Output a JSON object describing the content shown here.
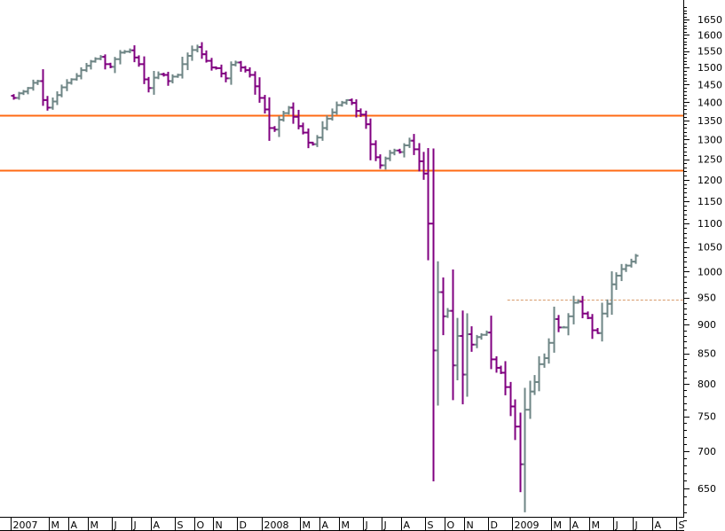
{
  "colors": {
    "background": "#ffffff",
    "up_bar": "#6e8585",
    "down_bar": "#800080",
    "resistance_line": "#ff6a13",
    "reference_line": "#d89a6a",
    "axis": "#000000"
  },
  "chart_data": {
    "type": "ohlc",
    "scale": "log",
    "ylim": [
      600,
      1700
    ],
    "y_ticks": [
      650,
      700,
      750,
      800,
      850,
      900,
      950,
      1000,
      1050,
      1100,
      1150,
      1200,
      1250,
      1300,
      1350,
      1400,
      1450,
      1500,
      1550,
      1600,
      1650
    ],
    "x_range": [
      "2007-01-01",
      "2009-09-28"
    ],
    "x_ticks": [
      {
        "date": "2007-01-01",
        "label": "2007"
      },
      {
        "date": "2007-02-26",
        "label": "M"
      },
      {
        "date": "2007-03-26",
        "label": "A"
      },
      {
        "date": "2007-04-23",
        "label": "M"
      },
      {
        "date": "2007-05-28",
        "label": "J"
      },
      {
        "date": "2007-06-25",
        "label": "J"
      },
      {
        "date": "2007-07-23",
        "label": "A"
      },
      {
        "date": "2007-08-27",
        "label": "S"
      },
      {
        "date": "2007-09-24",
        "label": "O"
      },
      {
        "date": "2007-10-22",
        "label": "N"
      },
      {
        "date": "2007-11-26",
        "label": "D"
      },
      {
        "date": "2007-12-31",
        "label": "2008"
      },
      {
        "date": "2008-02-25",
        "label": "M"
      },
      {
        "date": "2008-03-24",
        "label": "A"
      },
      {
        "date": "2008-04-21",
        "label": "M"
      },
      {
        "date": "2008-05-26",
        "label": "J"
      },
      {
        "date": "2008-06-23",
        "label": "J"
      },
      {
        "date": "2008-07-21",
        "label": "A"
      },
      {
        "date": "2008-08-25",
        "label": "S"
      },
      {
        "date": "2008-09-22",
        "label": "O"
      },
      {
        "date": "2008-10-20",
        "label": "N"
      },
      {
        "date": "2008-11-24",
        "label": "D"
      },
      {
        "date": "2008-12-29",
        "label": "2009"
      },
      {
        "date": "2009-02-23",
        "label": "M"
      },
      {
        "date": "2009-03-23",
        "label": "A"
      },
      {
        "date": "2009-04-20",
        "label": "M"
      },
      {
        "date": "2009-05-25",
        "label": "J"
      },
      {
        "date": "2009-06-22",
        "label": "J"
      },
      {
        "date": "2009-07-20",
        "label": "A"
      },
      {
        "date": "2009-08-24",
        "label": "S"
      }
    ],
    "horizontal_lines": [
      {
        "value": 1363,
        "style": "solid"
      },
      {
        "value": 1222,
        "style": "solid"
      },
      {
        "value": 945,
        "style": "dashed",
        "start": "2008-12-22"
      }
    ],
    "closes": [
      1412,
      1425,
      1430,
      1440,
      1455,
      1460,
      1406,
      1385,
      1402,
      1420,
      1442,
      1455,
      1465,
      1475,
      1492,
      1505,
      1518,
      1526,
      1532,
      1510,
      1502,
      1525,
      1545,
      1548,
      1552,
      1530,
      1510,
      1465,
      1440,
      1470,
      1480,
      1478,
      1460,
      1473,
      1478,
      1510,
      1535,
      1553,
      1562,
      1540,
      1520,
      1500,
      1498,
      1482,
      1468,
      1508,
      1515,
      1500,
      1492,
      1478,
      1445,
      1412,
      1380,
      1330,
      1326,
      1352,
      1370,
      1385,
      1360,
      1335,
      1318,
      1292,
      1288,
      1305,
      1330,
      1355,
      1372,
      1392,
      1399,
      1406,
      1398,
      1376,
      1366,
      1340,
      1288,
      1255,
      1235,
      1252,
      1266,
      1272,
      1268,
      1285,
      1297,
      1275,
      1245,
      1215,
      1100,
      855,
      960,
      915,
      925,
      830,
      880,
      815,
      883,
      865,
      878,
      882,
      886,
      840,
      826,
      818,
      795,
      765,
      735,
      682,
      760,
      788,
      803,
      832,
      842,
      868,
      910,
      895,
      895,
      915,
      940,
      942,
      920,
      912,
      890,
      885,
      920,
      938,
      975,
      992,
      1005,
      1012,
      1020,
      1032
    ],
    "series": [
      {
        "name": "",
        "values": [
          1412,
          1425,
          1430,
          1440,
          1455,
          1460,
          1406,
          1385,
          1402,
          1420,
          1442,
          1455,
          1465,
          1475,
          1492,
          1505,
          1518,
          1526,
          1532,
          1510,
          1502,
          1525,
          1545,
          1548,
          1552,
          1530,
          1510,
          1465,
          1440,
          1470,
          1480,
          1478,
          1460,
          1473,
          1478,
          1510,
          1535,
          1553,
          1562,
          1540,
          1520,
          1500,
          1498,
          1482,
          1468,
          1508,
          1515,
          1500,
          1492,
          1478,
          1445,
          1412,
          1380,
          1330,
          1326,
          1352,
          1370,
          1385,
          1360,
          1335,
          1318,
          1292,
          1288,
          1305,
          1330,
          1355,
          1372,
          1392,
          1399,
          1406,
          1398,
          1376,
          1366,
          1340,
          1288,
          1255,
          1235,
          1252,
          1266,
          1272,
          1268,
          1285,
          1297,
          1275,
          1245,
          1215,
          1100,
          855,
          960,
          915,
          925,
          830,
          880,
          815,
          883,
          865,
          878,
          882,
          886,
          840,
          826,
          818,
          795,
          765,
          735,
          682,
          760,
          788,
          803,
          832,
          842,
          868,
          910,
          895,
          895,
          915,
          940,
          942,
          920,
          912,
          890,
          885,
          920,
          938,
          975,
          992,
          1005,
          1012,
          1020,
          1032
        ]
      }
    ],
    "x_start": "2007-01-05",
    "x_step_days": 7,
    "open_first": 1418
  }
}
